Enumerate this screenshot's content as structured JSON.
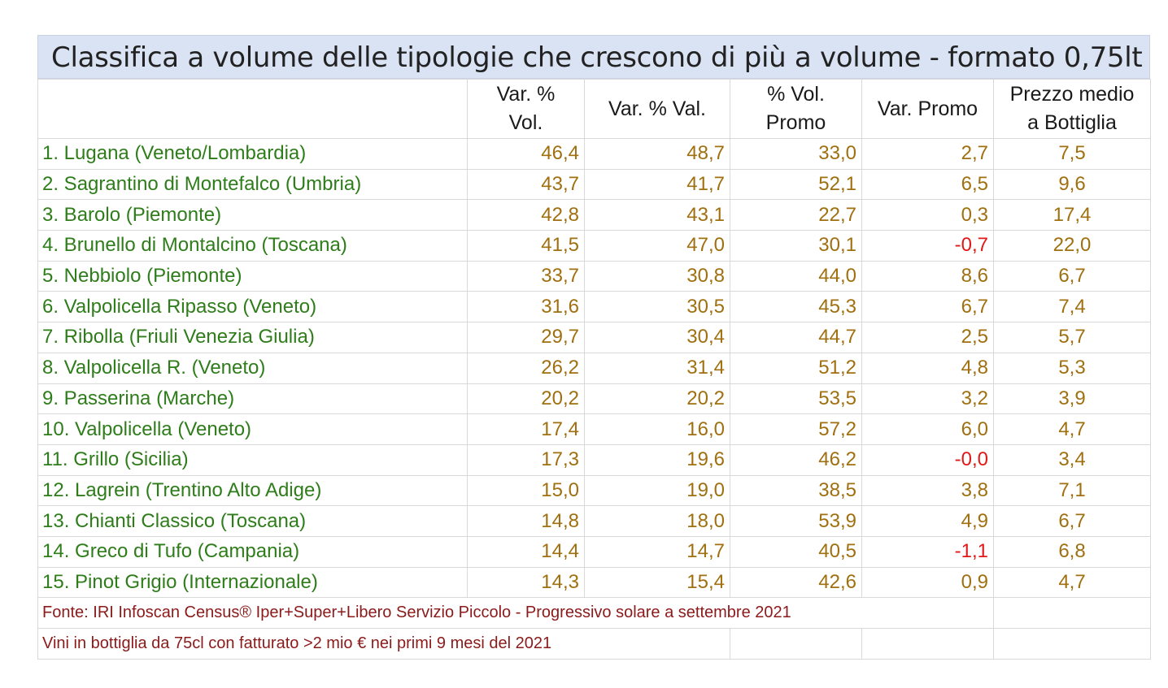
{
  "title": "Classifica a volume delle tipologie che crescono di più a volume - formato 0,75lt",
  "columns": [
    "",
    "Var. %\nVol.",
    "Var. % Val.",
    "% Vol.\nPromo",
    "Var. Promo",
    "Prezzo medio\na Bottiglia"
  ],
  "rows": [
    {
      "name": "1. Lugana (Veneto/Lombardia)",
      "vol": "46,4",
      "val": "48,7",
      "promo_vol": "33,0",
      "promo_var": "2,7",
      "prezzo": "7,5"
    },
    {
      "name": "2. Sagrantino di Montefalco (Umbria)",
      "vol": "43,7",
      "val": "41,7",
      "promo_vol": "52,1",
      "promo_var": "6,5",
      "prezzo": "9,6"
    },
    {
      "name": "3. Barolo (Piemonte)",
      "vol": "42,8",
      "val": "43,1",
      "promo_vol": "22,7",
      "promo_var": "0,3",
      "prezzo": "17,4"
    },
    {
      "name": "4. Brunello di Montalcino (Toscana)",
      "vol": "41,5",
      "val": "47,0",
      "promo_vol": "30,1",
      "promo_var": "-0,7",
      "prezzo": "22,0"
    },
    {
      "name": "5. Nebbiolo (Piemonte)",
      "vol": "33,7",
      "val": "30,8",
      "promo_vol": "44,0",
      "promo_var": "8,6",
      "prezzo": "6,7"
    },
    {
      "name": "6. Valpolicella Ripasso (Veneto)",
      "vol": "31,6",
      "val": "30,5",
      "promo_vol": "45,3",
      "promo_var": "6,7",
      "prezzo": "7,4"
    },
    {
      "name": "7. Ribolla (Friuli Venezia Giulia)",
      "vol": "29,7",
      "val": "30,4",
      "promo_vol": "44,7",
      "promo_var": "2,5",
      "prezzo": "5,7"
    },
    {
      "name": "8. Valpolicella R. (Veneto)",
      "vol": "26,2",
      "val": "31,4",
      "promo_vol": "51,2",
      "promo_var": "4,8",
      "prezzo": "5,3"
    },
    {
      "name": "9. Passerina (Marche)",
      "vol": "20,2",
      "val": "20,2",
      "promo_vol": "53,5",
      "promo_var": "3,2",
      "prezzo": "3,9"
    },
    {
      "name": "10. Valpolicella (Veneto)",
      "vol": "17,4",
      "val": "16,0",
      "promo_vol": "57,2",
      "promo_var": "6,0",
      "prezzo": "4,7"
    },
    {
      "name": "11. Grillo (Sicilia)",
      "vol": "17,3",
      "val": "19,6",
      "promo_vol": "46,2",
      "promo_var": "-0,0",
      "prezzo": "3,4"
    },
    {
      "name": "12. Lagrein (Trentino Alto Adige)",
      "vol": "15,0",
      "val": "19,0",
      "promo_vol": "38,5",
      "promo_var": "3,8",
      "prezzo": "7,1"
    },
    {
      "name": "13. Chianti Classico (Toscana)",
      "vol": "14,8",
      "val": "18,0",
      "promo_vol": "53,9",
      "promo_var": "4,9",
      "prezzo": "6,7"
    },
    {
      "name": "14. Greco di Tufo (Campania)",
      "vol": "14,4",
      "val": "14,7",
      "promo_vol": "40,5",
      "promo_var": "-1,1",
      "prezzo": "6,8"
    },
    {
      "name": "15. Pinot Grigio (Internazionale)",
      "vol": "14,3",
      "val": "15,4",
      "promo_vol": "42,6",
      "promo_var": "0,9",
      "prezzo": "4,7"
    }
  ],
  "notes": [
    "Fonte: IRI Infoscan Census® Iper+Super+Libero Servizio Piccolo - Progressivo solare a settembre 2021",
    "Vini in bottiglia da 75cl con fatturato >2 mio € nei primi 9 mesi del 2021"
  ],
  "colors": {
    "title_bg": "#dae3f3",
    "name_text": "#2e7d1a",
    "number_text": "#a07010",
    "negative_text": "#e01818",
    "note_text": "#8b1a1a"
  }
}
